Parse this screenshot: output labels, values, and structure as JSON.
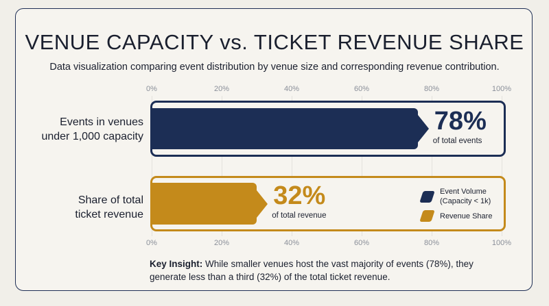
{
  "title": "VENUE CAPACITY vs. TICKET REVENUE SHARE",
  "subtitle": "Data visualization comparing event distribution by venue size and corresponding revenue contribution.",
  "colors": {
    "navy": "#1c2e55",
    "gold": "#c48a1b",
    "frame_gold": "#c48a1b",
    "frame_navy": "#1c2e55"
  },
  "chart_data": {
    "type": "bar",
    "orientation": "horizontal",
    "xlim": [
      0,
      100
    ],
    "x_ticks": [
      "0%",
      "20%",
      "40%",
      "60%",
      "80%",
      "100%"
    ],
    "categories": [
      "Events in venues under 1,000 capacity",
      "Share of total ticket revenue"
    ],
    "rows": [
      {
        "label_line1": "Events in venues",
        "label_line2": "under 1,000 capacity",
        "value": 78,
        "value_label": "78%",
        "sublabel": "of total events",
        "color": "#1c2e55"
      },
      {
        "label_line1": "Share of total",
        "label_line2": "ticket revenue",
        "value": 32,
        "value_label": "32%",
        "sublabel": "of total revenue",
        "color": "#c48a1b"
      }
    ],
    "legend": [
      {
        "label": "Event Volume\n(Capacity < 1k)",
        "color": "#1c2e55"
      },
      {
        "label": "Revenue Share",
        "color": "#c48a1b"
      }
    ]
  },
  "insight": {
    "lead": "Key Insight:",
    "text": " While smaller venues host the vast majority of events (78%), they generate less than a third (32%) of the total ticket revenue."
  }
}
